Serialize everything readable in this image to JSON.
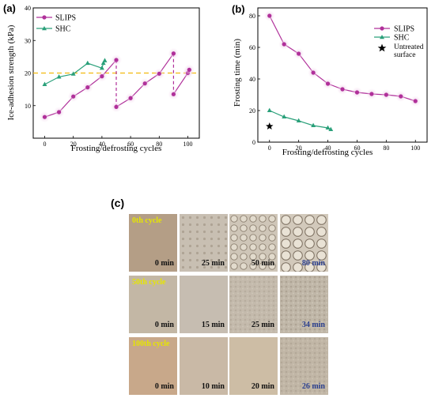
{
  "panel_labels": {
    "a": "(a)",
    "b": "(b)",
    "c": "(c)"
  },
  "colors": {
    "slips": "#b0309a",
    "shc": "#2aa07a",
    "threshold": "#f2b90e",
    "cycle_text": "#e6e600",
    "time_blue": "#2a3f8f"
  },
  "chart_data": [
    {
      "type": "line",
      "panel": "(a)",
      "xlabel": "Frosting/defrosting cycles",
      "ylabel": "Ice-adhesion strength (kPa)",
      "xlim": [
        -8,
        108
      ],
      "ylim": [
        0,
        40
      ],
      "xticks": [
        0,
        20,
        40,
        60,
        80,
        100
      ],
      "yticks": [
        10,
        20,
        30,
        40
      ],
      "reference_line": {
        "y": 20,
        "style": "dashed"
      },
      "legend_position": "top-left",
      "series": [
        {
          "name": "SLIPS",
          "marker": "circle",
          "x": [
            0,
            10,
            20,
            30,
            40,
            50,
            50,
            60,
            70,
            80,
            90,
            90,
            100,
            101
          ],
          "y": [
            6.5,
            8,
            12.8,
            15.6,
            19,
            24,
            9.6,
            12.3,
            16.8,
            19.8,
            26,
            13.5,
            20,
            21
          ],
          "segments": [
            [
              0,
              5
            ],
            [
              6,
              10
            ],
            [
              11,
              13
            ]
          ],
          "drops": [
            [
              5,
              6
            ],
            [
              10,
              11
            ]
          ]
        },
        {
          "name": "SHC",
          "marker": "triangle",
          "x": [
            0,
            10,
            20,
            30,
            40,
            41,
            42
          ],
          "y": [
            16.5,
            18.8,
            19.7,
            23,
            21.5,
            23,
            23.8
          ]
        }
      ]
    },
    {
      "type": "line",
      "panel": "(b)",
      "xlabel": "Frosting/defrosting cycles",
      "ylabel": "Frosting time (min)",
      "xlim": [
        -8,
        108
      ],
      "ylim": [
        0,
        85
      ],
      "xticks": [
        0,
        20,
        40,
        60,
        80,
        100
      ],
      "yticks": [
        0,
        20,
        40,
        60,
        80
      ],
      "legend_position": "top-right",
      "series": [
        {
          "name": "SLIPS",
          "marker": "circle",
          "x": [
            0,
            10,
            20,
            30,
            40,
            50,
            60,
            70,
            80,
            90,
            100
          ],
          "y": [
            80,
            62,
            56,
            44,
            37,
            33.5,
            31.5,
            30.5,
            30,
            29,
            26
          ]
        },
        {
          "name": "SHC",
          "marker": "triangle",
          "x": [
            0,
            10,
            20,
            30,
            40,
            42
          ],
          "y": [
            20,
            16,
            13.5,
            10.5,
            9,
            8
          ]
        },
        {
          "name": "Untreated surface",
          "marker": "star",
          "x": [
            0
          ],
          "y": [
            10
          ]
        }
      ]
    }
  ],
  "micrographs": {
    "rows": [
      {
        "cycle_label": "0th cycle",
        "times": [
          "0 min",
          "25 min",
          "50 min",
          "80 min"
        ]
      },
      {
        "cycle_label": "50th cycle",
        "times": [
          "0 min",
          "15 min",
          "25 min",
          "34 min"
        ]
      },
      {
        "cycle_label": "100th cycle",
        "times": [
          "0 min",
          "10 min",
          "20 min",
          "26 min"
        ]
      }
    ]
  }
}
